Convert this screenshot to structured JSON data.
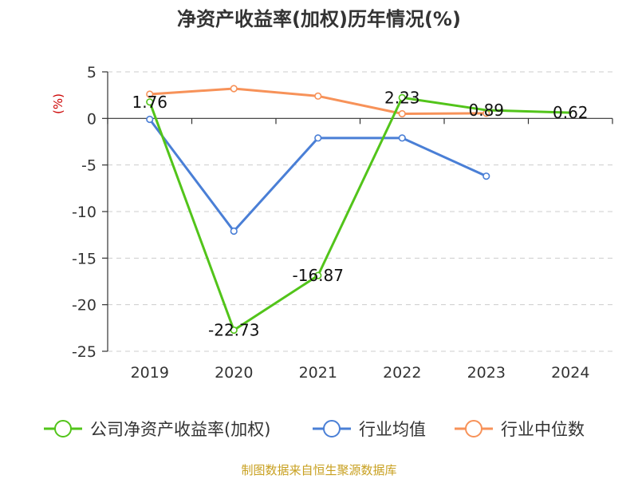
{
  "colors": {
    "company": "#52c41a",
    "industry_avg": "#4a7fd6",
    "industry_median": "#f79259",
    "unit": "#cc0000",
    "source": "#c8a020",
    "grid": "#cccccc",
    "axis": "#333333"
  },
  "chart_data": {
    "type": "line",
    "title": "净资产收益率(加权)历年情况(%)",
    "ylabel": "(%)",
    "xlabel": "",
    "categories": [
      "2019",
      "2020",
      "2021",
      "2022",
      "2023",
      "2024"
    ],
    "ylim": [
      -25,
      5
    ],
    "yticks": [
      5,
      0,
      -5,
      -10,
      -15,
      -20,
      -25
    ],
    "grid": "horizontal dashed",
    "legend_position": "bottom",
    "series": [
      {
        "name": "公司净资产收益率(加权)",
        "color_key": "company",
        "values": [
          1.76,
          -22.73,
          -16.87,
          2.23,
          0.89,
          0.62
        ],
        "labels": [
          "1.76",
          "-22.73",
          "-16.87",
          "2.23",
          "0.89",
          "0.62"
        ],
        "markers": [
          true,
          true,
          true,
          true,
          false,
          false
        ]
      },
      {
        "name": "行业均值",
        "color_key": "industry_avg",
        "values": [
          -0.1,
          -12.1,
          -2.1,
          -2.1,
          -6.2,
          null
        ],
        "markers": [
          true,
          true,
          true,
          true,
          true,
          false
        ]
      },
      {
        "name": "行业中位数",
        "color_key": "industry_median",
        "values": [
          2.6,
          3.2,
          2.4,
          0.5,
          0.55,
          null
        ],
        "markers": [
          true,
          true,
          true,
          true,
          true,
          false
        ]
      }
    ]
  },
  "footer": {
    "source": "制图数据来自恒生聚源数据库"
  }
}
